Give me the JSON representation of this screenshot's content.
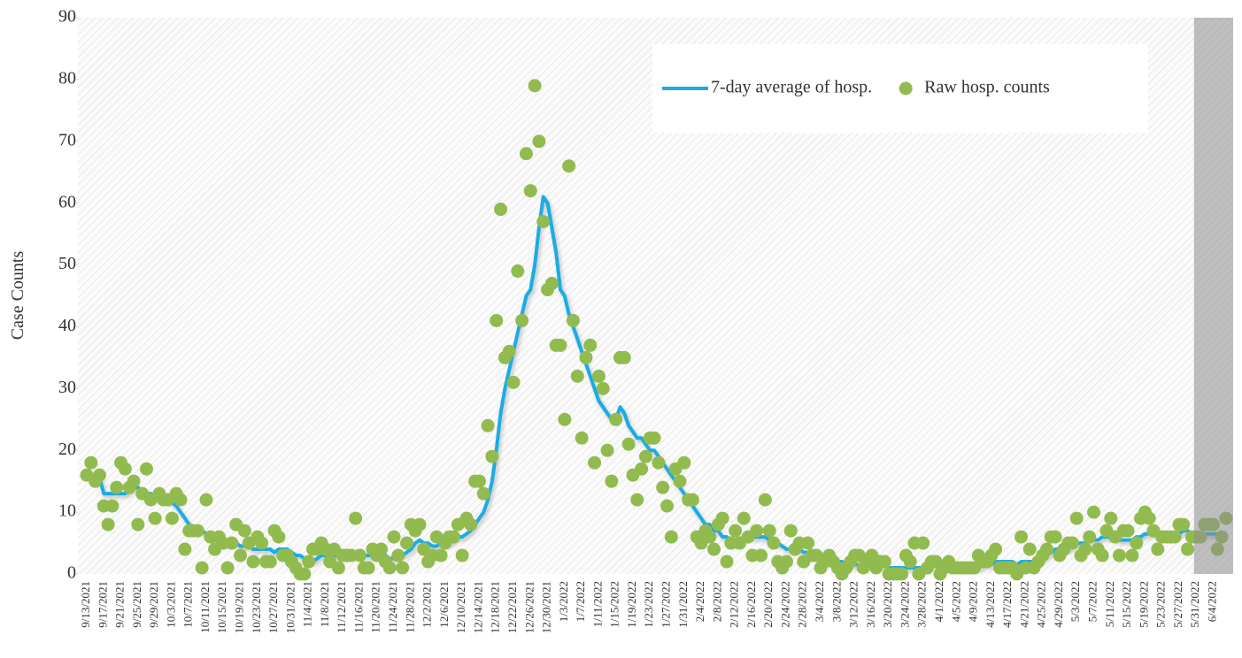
{
  "chart_data": {
    "type": "line",
    "y_label": "Case Counts",
    "categories": [
      "9/13/2021",
      null,
      null,
      null,
      "9/17/2021",
      null,
      null,
      null,
      "9/21/2021",
      null,
      null,
      null,
      "9/25/2021",
      null,
      null,
      null,
      "9/29/2021",
      null,
      null,
      null,
      "10/3/2021",
      null,
      null,
      null,
      "10/7/2021",
      null,
      null,
      null,
      "10/11/2021",
      null,
      null,
      null,
      "10/15/2021",
      null,
      null,
      null,
      "10/19/2021",
      null,
      null,
      null,
      "10/23/2021",
      null,
      null,
      null,
      "10/27/2021",
      null,
      null,
      null,
      "10/31/2021",
      null,
      null,
      null,
      "11/4/2021",
      null,
      null,
      null,
      "11/8/2021",
      null,
      null,
      null,
      "11/12/2021",
      null,
      null,
      null,
      "11/16/2021",
      null,
      null,
      null,
      "11/20/2021",
      null,
      null,
      null,
      "11/24/2021",
      null,
      null,
      null,
      "11/28/2021",
      null,
      null,
      null,
      "12/2/2021",
      null,
      null,
      null,
      "12/6/2021",
      null,
      null,
      null,
      "12/10/2021",
      null,
      null,
      null,
      "12/14/2021",
      null,
      null,
      null,
      "12/18/2021",
      null,
      null,
      null,
      "12/22/2021",
      null,
      null,
      null,
      "12/26/2021",
      null,
      null,
      null,
      "12/30/2021",
      null,
      null,
      null,
      "1/3/2022",
      null,
      null,
      null,
      "1/7/2022",
      null,
      null,
      null,
      "1/11/2022",
      null,
      null,
      null,
      "1/15/2022",
      null,
      null,
      null,
      "1/19/2022",
      null,
      null,
      null,
      "1/23/2022",
      null,
      null,
      null,
      "1/27/2022",
      null,
      null,
      null,
      "1/31/2022",
      null,
      null,
      null,
      "2/4/2022",
      null,
      null,
      null,
      "2/8/2022",
      null,
      null,
      null,
      "2/12/2022",
      null,
      null,
      null,
      "2/16/2022",
      null,
      null,
      null,
      "2/20/2022",
      null,
      null,
      null,
      "2/24/2022",
      null,
      null,
      null,
      "2/28/2022",
      null,
      null,
      null,
      "3/4/2022",
      null,
      null,
      null,
      "3/8/2022",
      null,
      null,
      null,
      "3/12/2022",
      null,
      null,
      null,
      "3/16/2022",
      null,
      null,
      null,
      "3/20/2022",
      null,
      null,
      null,
      "3/24/2022",
      null,
      null,
      null,
      "3/28/2022",
      null,
      null,
      null,
      "4/1/2022",
      null,
      null,
      null,
      "4/5/2022",
      null,
      null,
      null,
      "4/9/2022",
      null,
      null,
      null,
      "4/13/2022",
      null,
      null,
      null,
      "4/17/2022",
      null,
      null,
      null,
      "4/21/2022",
      null,
      null,
      null,
      "4/25/2022",
      null,
      null,
      null,
      "4/29/2022",
      null,
      null,
      null,
      "5/3/2022",
      null,
      null,
      null,
      "5/7/2022",
      null,
      null,
      null,
      "5/11/2022",
      null,
      null,
      null,
      "5/15/2022",
      null,
      null,
      null,
      "5/19/2022",
      null,
      null,
      null,
      "5/23/2022",
      null,
      null,
      null,
      "5/27/2022",
      null,
      null,
      null,
      "5/31/2022",
      null,
      null,
      null,
      "6/4/2022",
      null,
      null,
      null
    ],
    "series": [
      {
        "name": "7-day average of hosp.",
        "color": "#1aace5",
        "kind": "line",
        "values": [
          16,
          16,
          16,
          15.5,
          13,
          13,
          13,
          13,
          13,
          13,
          13.5,
          14,
          14,
          13.5,
          13,
          13,
          12.5,
          12.5,
          12,
          12,
          11.5,
          11,
          10,
          9,
          8,
          7.5,
          7,
          7,
          6.5,
          6,
          6,
          5.5,
          5,
          5,
          5,
          5,
          4.5,
          4.5,
          4.5,
          4,
          4,
          4,
          4,
          4,
          3.5,
          4,
          4,
          4,
          3.5,
          3,
          3,
          2.5,
          2,
          2,
          2.5,
          3,
          3,
          3,
          3,
          3,
          3,
          3,
          3.5,
          3.5,
          3,
          3,
          3,
          3,
          3,
          3,
          3,
          2.5,
          2.5,
          3,
          3,
          3.5,
          4,
          5,
          5.5,
          5,
          5,
          4.5,
          4.5,
          5,
          5,
          5,
          5.5,
          6,
          6,
          6.5,
          7,
          8,
          9,
          10,
          12,
          15,
          20,
          26,
          30,
          33,
          36,
          39,
          42,
          45,
          46,
          50,
          56,
          61,
          60,
          56,
          52,
          46,
          45,
          42,
          40,
          38,
          36,
          34,
          32,
          30,
          28,
          27,
          26,
          25,
          25,
          27,
          26,
          24,
          23,
          22,
          22,
          21,
          20,
          20,
          19,
          18,
          17,
          16,
          15,
          14,
          13,
          12,
          11,
          10,
          9,
          8,
          8,
          7,
          7,
          6,
          6,
          5.5,
          5.5,
          5.5,
          6,
          6,
          6,
          6,
          6,
          6,
          5.5,
          5,
          5,
          4.5,
          4,
          4,
          4,
          4,
          3.5,
          3.5,
          3,
          3,
          3,
          2.5,
          2.5,
          2,
          2,
          2,
          1.5,
          1.5,
          1.5,
          1.5,
          1.5,
          1.5,
          1.5,
          1.5,
          1.5,
          1.5,
          1,
          1,
          1,
          1,
          1,
          1,
          1,
          1,
          1,
          1.5,
          1.5,
          1.5,
          1.5,
          1.5,
          1.5,
          1.5,
          1,
          1,
          1,
          1,
          1,
          1,
          1.5,
          1.5,
          1.5,
          2,
          2,
          2,
          2,
          2,
          1.5,
          2,
          2,
          2,
          2,
          2,
          2.5,
          3,
          3.5,
          4,
          4,
          4,
          4,
          4.5,
          5,
          5,
          5,
          5.5,
          5.5,
          5.5,
          6,
          6,
          6,
          6,
          5.5,
          5.5,
          5.5,
          5.5,
          6,
          6,
          6.5,
          6.5,
          6.5,
          6.5,
          6.5,
          6.5,
          6.5,
          6.5,
          6.5,
          7,
          7,
          6.5,
          6.5,
          6.5,
          6.5,
          6.5,
          6.5,
          6.5,
          6.5,
          null
        ]
      },
      {
        "name": "Raw hosp. counts",
        "color": "#92bb4f",
        "kind": "scatter",
        "values": [
          16,
          18,
          15,
          16,
          11,
          8,
          11,
          14,
          18,
          17,
          14,
          15,
          8,
          13,
          17,
          12,
          9,
          13,
          12,
          12,
          9,
          13,
          12,
          4,
          7,
          7,
          7,
          1,
          12,
          6,
          4,
          6,
          5,
          1,
          5,
          8,
          3,
          7,
          5,
          2,
          6,
          5,
          2,
          2,
          7,
          6,
          3,
          3,
          2,
          1,
          0,
          0,
          2,
          4,
          4,
          5,
          4,
          2,
          4,
          1,
          3,
          3,
          3,
          9,
          3,
          1,
          1,
          4,
          3,
          4,
          2,
          1,
          6,
          3,
          1,
          5,
          8,
          7,
          8,
          4,
          2,
          3,
          6,
          3,
          5,
          6,
          6,
          8,
          3,
          9,
          8,
          15,
          15,
          13,
          24,
          19,
          41,
          59,
          35,
          36,
          31,
          49,
          41,
          68,
          62,
          79,
          70,
          57,
          46,
          47,
          37,
          37,
          25,
          66,
          41,
          32,
          22,
          35,
          37,
          18,
          32,
          30,
          20,
          15,
          25,
          35,
          35,
          21,
          16,
          12,
          17,
          19,
          22,
          22,
          18,
          14,
          11,
          6,
          17,
          15,
          18,
          12,
          12,
          6,
          5,
          7,
          6,
          4,
          8,
          9,
          2,
          5,
          7,
          5,
          9,
          6,
          3,
          7,
          3,
          12,
          7,
          5,
          2,
          1,
          2,
          7,
          4,
          5,
          2,
          5,
          3,
          3,
          1,
          2,
          3,
          2,
          1,
          0,
          1,
          2,
          3,
          3,
          1,
          2,
          3,
          1,
          2,
          2,
          0,
          0,
          0,
          0,
          3,
          2,
          5,
          0,
          5,
          1,
          2,
          2,
          0,
          1,
          2,
          1,
          1,
          1,
          1,
          1,
          1,
          3,
          2,
          2,
          3,
          4,
          1,
          1,
          1,
          1,
          0,
          6,
          1,
          4,
          1,
          2,
          3,
          4,
          6,
          6,
          3,
          4,
          5,
          5,
          9,
          3,
          4,
          6,
          10,
          4,
          3,
          7,
          9,
          6,
          3,
          7,
          7,
          3,
          5,
          9,
          10,
          9,
          7,
          4,
          6,
          6,
          6,
          6,
          8,
          8,
          4,
          6,
          6,
          6,
          8,
          8,
          8,
          4,
          6,
          9
        ]
      }
    ],
    "ylim": [
      0,
      90
    ],
    "yticks": [
      0,
      10,
      20,
      30,
      40,
      50,
      60,
      70,
      80,
      90
    ],
    "shade_from": "5/31/2022",
    "legend": "top-right"
  }
}
